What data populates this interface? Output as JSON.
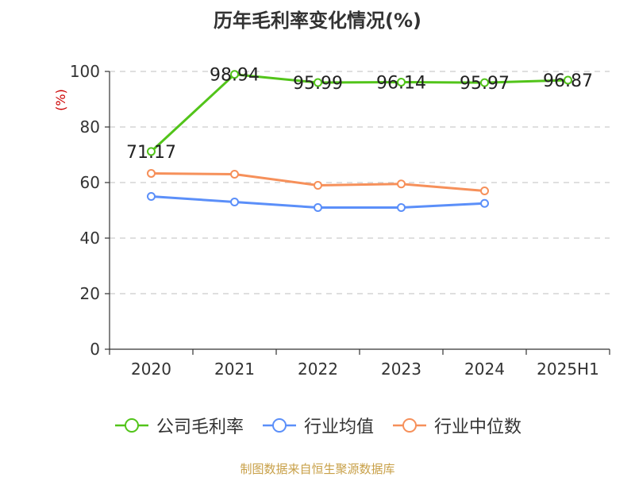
{
  "page": {
    "source": "制图数据来自恒生聚源数据库"
  },
  "chart_data": {
    "type": "line",
    "title": "历年毛利率变化情况(%)",
    "ylabel": "(%)",
    "xlabel": "",
    "ylim": [
      0,
      100
    ],
    "yticks": [
      0,
      20,
      40,
      60,
      80,
      100
    ],
    "categories": [
      "2020",
      "2021",
      "2022",
      "2023",
      "2024",
      "2025H1"
    ],
    "grid": true,
    "legend_position": "bottom",
    "series": [
      {
        "name": "公司毛利率",
        "color": "#52c41a",
        "values": [
          71.17,
          98.94,
          95.99,
          96.14,
          95.97,
          96.87
        ],
        "labels": [
          "71.17",
          "98.94",
          "95.99",
          "96.14",
          "95.97",
          "96.87"
        ]
      },
      {
        "name": "行业均值",
        "color": "#5b8ff9",
        "values": [
          55,
          53,
          51,
          51,
          52.5,
          null
        ]
      },
      {
        "name": "行业中位数",
        "color": "#f6905a",
        "values": [
          63.3,
          63,
          59,
          59.5,
          57,
          null
        ]
      }
    ]
  }
}
